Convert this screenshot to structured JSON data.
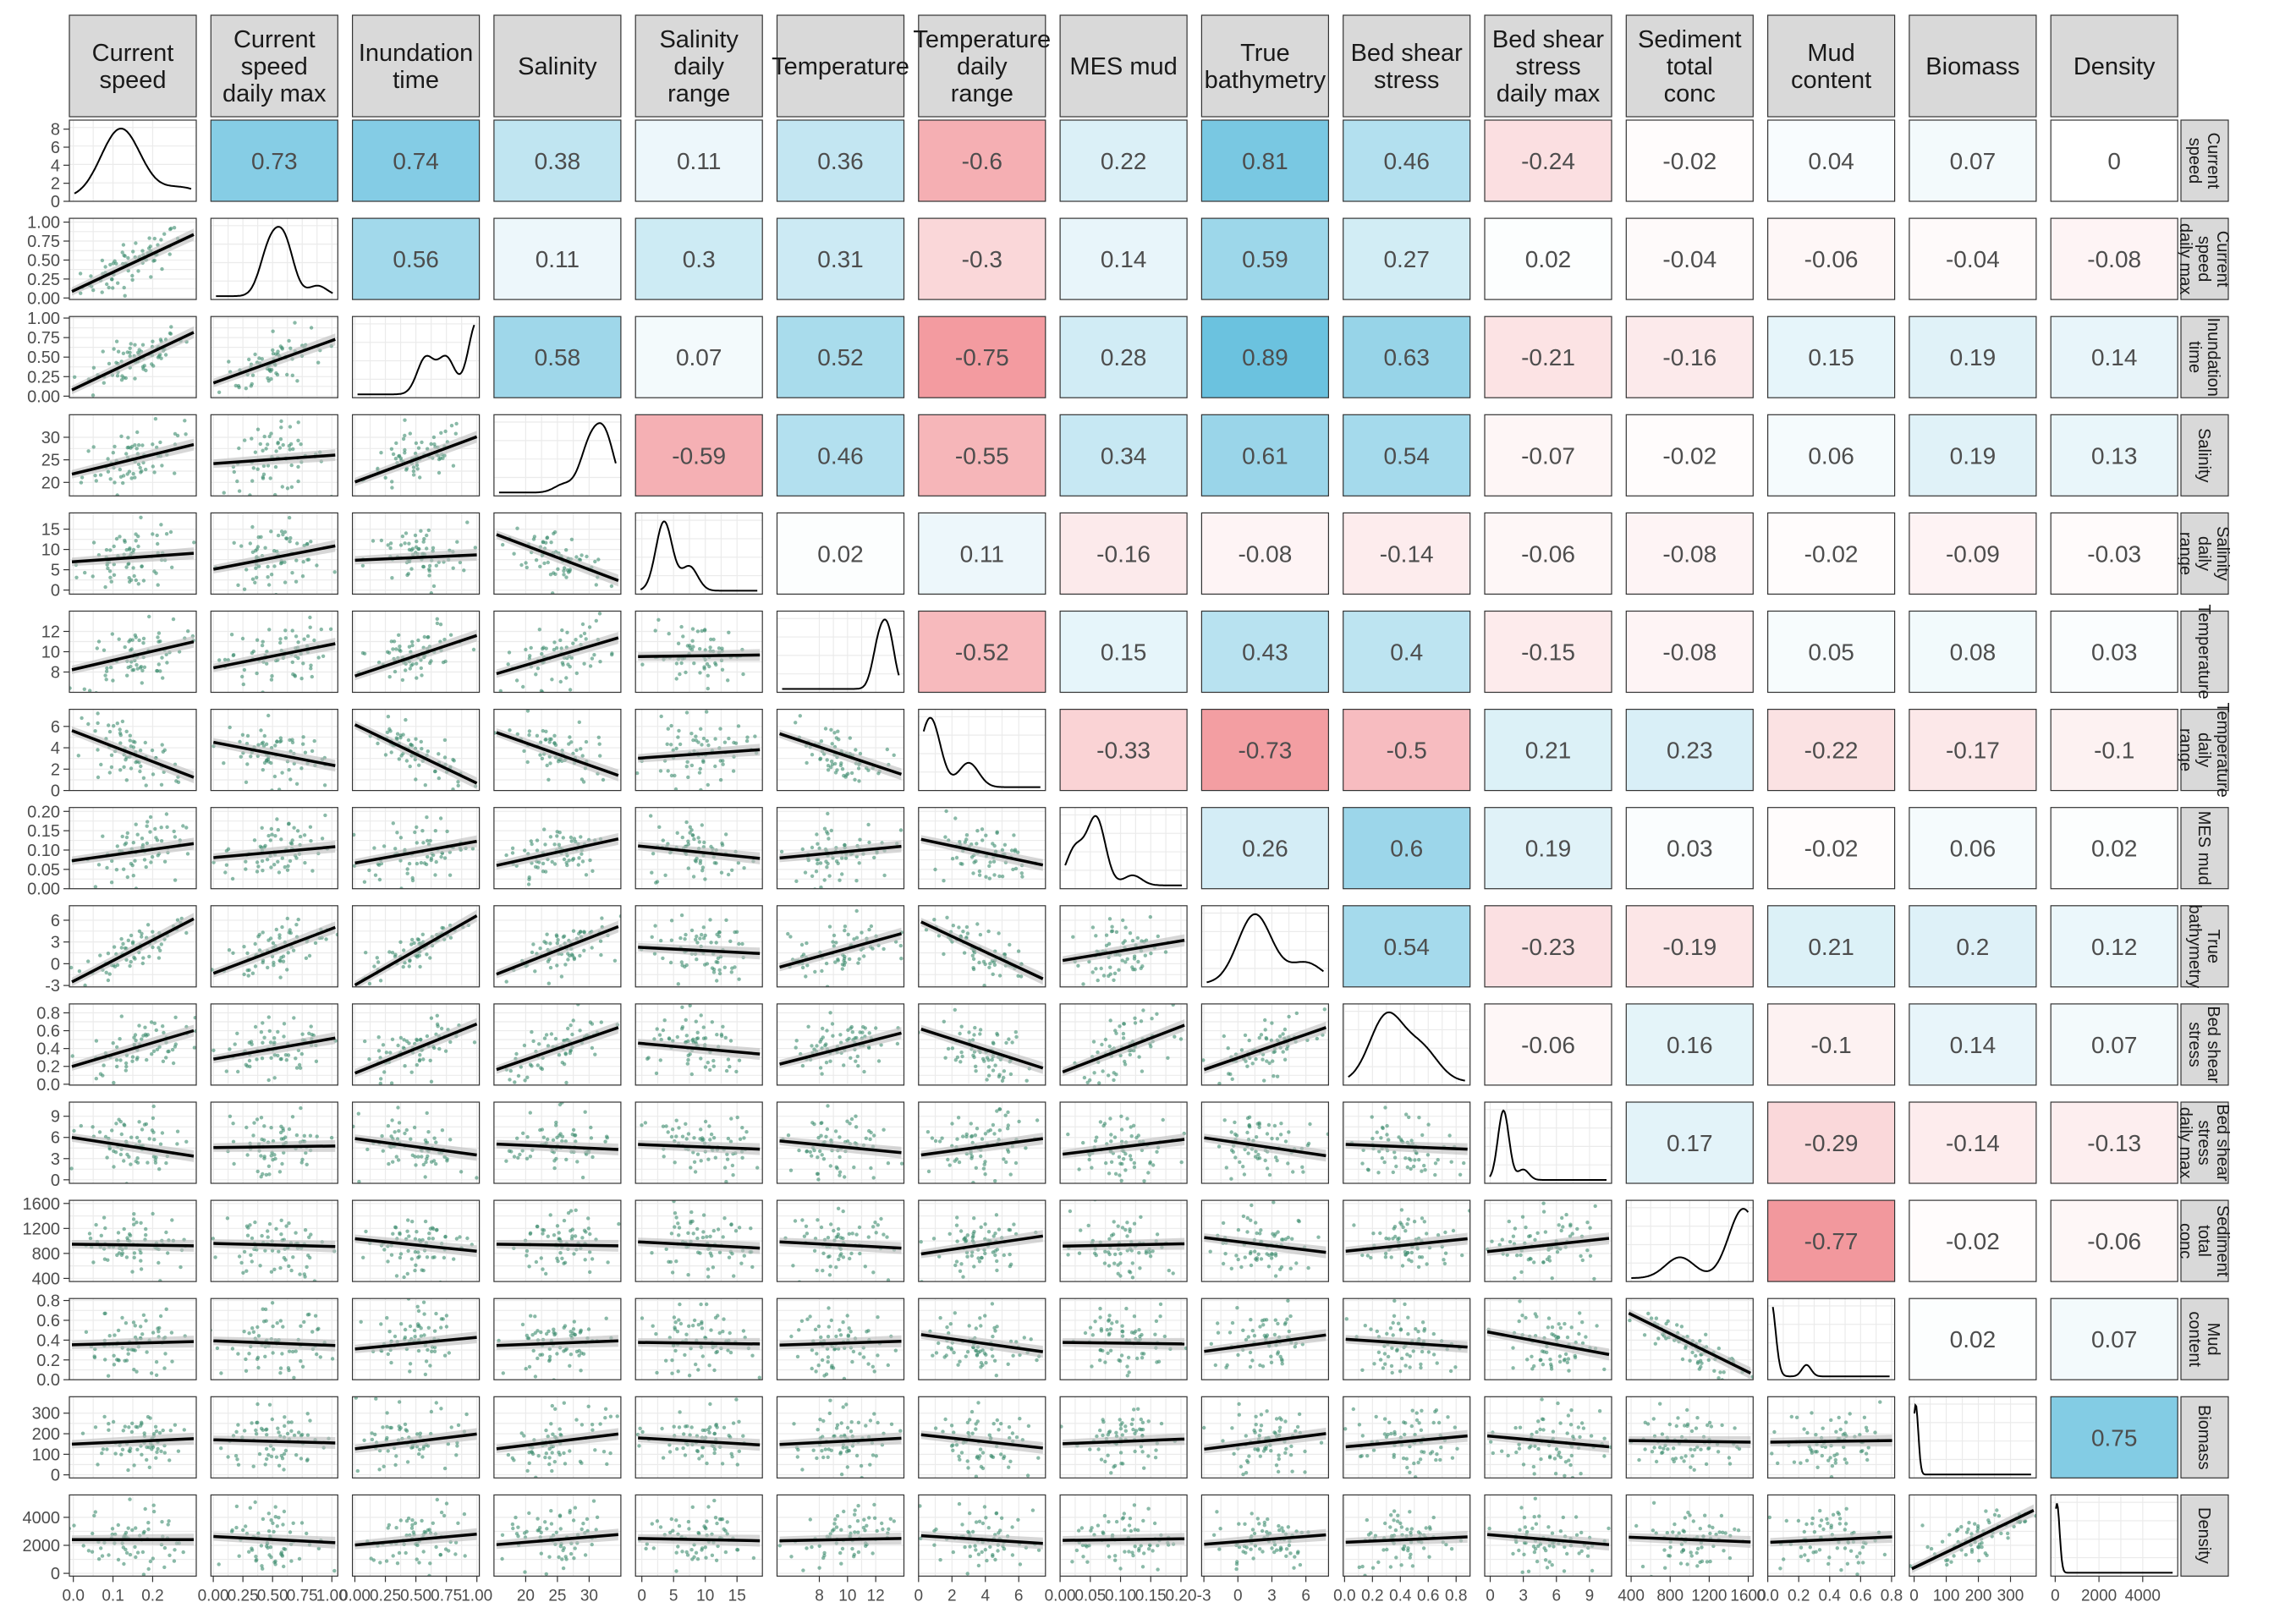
{
  "chart_data": {
    "type": "scatter-matrix",
    "variables": [
      {
        "header": [
          "Current",
          "speed"
        ],
        "strip": [
          "Current",
          "speed"
        ],
        "range": [
          -0.01,
          0.31
        ],
        "ticks": [
          0,
          0.1,
          0.2
        ],
        "tick_labels": [
          "0.0",
          "0.1",
          "0.2"
        ],
        "y_ticks": [
          0,
          2,
          4,
          6,
          8
        ],
        "y_tick_labels": [
          "0",
          "2",
          "4",
          "6",
          "8"
        ],
        "y_range": [
          0,
          9
        ],
        "density_peaks": [
          [
            0.12,
            1
          ],
          [
            0.27,
            0.15
          ]
        ],
        "dens_width": 0.05
      },
      {
        "header": [
          "Current",
          "speed",
          "daily max"
        ],
        "strip": [
          "Current",
          "speed",
          "daily max"
        ],
        "range": [
          -0.02,
          1.05
        ],
        "ticks": [
          0,
          0.25,
          0.5,
          0.75,
          1
        ],
        "tick_labels": [
          "0.00",
          "0.25",
          "0.50",
          "0.75",
          "1.00"
        ],
        "y_ticks": [
          0,
          0.25,
          0.5,
          0.75,
          1
        ],
        "y_tick_labels": [
          "0.00",
          "0.25",
          "0.50",
          "0.75",
          "1.00"
        ],
        "density_peaks": [
          [
            0.47,
            0.85
          ],
          [
            0.6,
            1
          ],
          [
            0.88,
            0.2
          ]
        ],
        "dens_width": 0.08
      },
      {
        "header": [
          "Inundation",
          "time"
        ],
        "strip": [
          "Inundation",
          "time"
        ],
        "range": [
          -0.02,
          1.02
        ],
        "ticks": [
          0,
          0.25,
          0.5,
          0.75,
          1
        ],
        "tick_labels": [
          "0.00",
          "0.25",
          "0.50",
          "0.75",
          "1.00"
        ],
        "y_ticks": [
          0,
          0.25,
          0.5,
          0.75,
          1
        ],
        "y_tick_labels": [
          "0.00",
          "0.25",
          "0.50",
          "0.75",
          "1.00"
        ],
        "density_peaks": [
          [
            0.58,
            0.5
          ],
          [
            0.75,
            0.5
          ],
          [
            1.0,
            1
          ]
        ],
        "dens_width": 0.07
      },
      {
        "header": [
          "Salinity"
        ],
        "strip": [
          "Salinity"
        ],
        "range": [
          15,
          35
        ],
        "ticks": [
          20,
          25,
          30
        ],
        "tick_labels": [
          "20",
          "25",
          "30"
        ],
        "y_ticks": [
          20,
          25,
          30
        ],
        "y_tick_labels": [
          "20",
          "25",
          "30"
        ],
        "y_range": [
          17,
          35
        ],
        "density_peaks": [
          [
            30,
            0.8
          ],
          [
            32.5,
            1
          ],
          [
            26,
            0.15
          ]
        ],
        "dens_width": 1.5
      },
      {
        "header": [
          "Salinity",
          "daily",
          "range"
        ],
        "strip": [
          "Salinity",
          "daily",
          "range"
        ],
        "range": [
          -1,
          19
        ],
        "ticks": [
          0,
          5,
          10,
          15
        ],
        "tick_labels": [
          "0",
          "5",
          "10",
          "15"
        ],
        "y_ticks": [
          0,
          5,
          10,
          15
        ],
        "y_tick_labels": [
          "0",
          "5",
          "10",
          "15"
        ],
        "density_peaks": [
          [
            3.5,
            1
          ],
          [
            7.5,
            0.35
          ]
        ],
        "dens_width": 1.3
      },
      {
        "header": [
          "Temperature"
        ],
        "strip": [
          "Temperature"
        ],
        "range": [
          5,
          14
        ],
        "ticks": [
          8,
          10,
          12
        ],
        "tick_labels": [
          "8",
          "10",
          "12"
        ],
        "y_ticks": [
          8,
          10,
          12
        ],
        "y_tick_labels": [
          "8",
          "10",
          "12"
        ],
        "y_range": [
          6,
          14
        ],
        "density_peaks": [
          [
            12.2,
            0.8
          ],
          [
            12.9,
            1
          ]
        ],
        "dens_width": 0.45
      },
      {
        "header": [
          "Temperature",
          "daily",
          "range"
        ],
        "strip": [
          "Temperature",
          "daily",
          "range"
        ],
        "range": [
          0,
          7.6
        ],
        "ticks": [
          0,
          2,
          4,
          6
        ],
        "tick_labels": [
          "0",
          "2",
          "4",
          "6"
        ],
        "y_ticks": [
          0,
          2,
          4,
          6
        ],
        "y_tick_labels": [
          "0",
          "2",
          "4",
          "6"
        ],
        "density_peaks": [
          [
            0.7,
            1
          ],
          [
            3,
            0.35
          ]
        ],
        "dens_width": 0.6
      },
      {
        "header": [
          "MES mud"
        ],
        "strip": [
          "MES mud"
        ],
        "range": [
          0,
          0.21
        ],
        "ticks": [
          0,
          0.05,
          0.1,
          0.15,
          0.2
        ],
        "tick_labels": [
          "0.00",
          "0.05",
          "0.10",
          "0.15",
          "0.20"
        ],
        "y_ticks": [
          0,
          0.05,
          0.1,
          0.15,
          0.2
        ],
        "y_tick_labels": [
          "0.00",
          "0.05",
          "0.10",
          "0.15",
          "0.20"
        ],
        "density_peaks": [
          [
            0.025,
            0.55
          ],
          [
            0.06,
            1
          ],
          [
            0.12,
            0.15
          ]
        ],
        "dens_width": 0.015
      },
      {
        "header": [
          "True",
          "bathymetry"
        ],
        "strip": [
          "True",
          "bathymetry"
        ],
        "range": [
          -3.2,
          8
        ],
        "ticks": [
          -3,
          0,
          3,
          6
        ],
        "tick_labels": [
          "-3",
          "0",
          "3",
          "6"
        ],
        "y_ticks": [
          -3,
          0,
          3,
          6
        ],
        "y_tick_labels": [
          "-3",
          "0",
          "3",
          "6"
        ],
        "density_peaks": [
          [
            1.5,
            1
          ],
          [
            6,
            0.3
          ]
        ],
        "dens_width": 1.5
      },
      {
        "header": [
          "Bed shear",
          "stress"
        ],
        "strip": [
          "Bed shear",
          "stress"
        ],
        "range": [
          -0.01,
          0.9
        ],
        "ticks": [
          0,
          0.2,
          0.4,
          0.6,
          0.8
        ],
        "tick_labels": [
          "0.0",
          "0.2",
          "0.4",
          "0.6",
          "0.8"
        ],
        "y_ticks": [
          0,
          0.2,
          0.4,
          0.6,
          0.8
        ],
        "y_tick_labels": [
          "0.0",
          "0.2",
          "0.4",
          "0.6",
          "0.8"
        ],
        "density_peaks": [
          [
            0.3,
            1
          ],
          [
            0.55,
            0.5
          ]
        ],
        "dens_width": 0.12
      },
      {
        "header": [
          "Bed shear",
          "stress",
          "daily max"
        ],
        "strip": [
          "Bed shear",
          "stress",
          "daily max"
        ],
        "range": [
          -0.5,
          11
        ],
        "ticks": [
          0,
          3,
          6,
          9
        ],
        "tick_labels": [
          "0",
          "3",
          "6",
          "9"
        ],
        "y_ticks": [
          0,
          3,
          6,
          9
        ],
        "y_tick_labels": [
          "0",
          "3",
          "6",
          "9"
        ],
        "density_peaks": [
          [
            1.2,
            1
          ],
          [
            3,
            0.15
          ]
        ],
        "dens_width": 0.5
      },
      {
        "header": [
          "Sediment",
          "total",
          "conc"
        ],
        "strip": [
          "Sediment",
          "total",
          "conc"
        ],
        "range": [
          350,
          1650
        ],
        "ticks": [
          400,
          800,
          1200,
          1600
        ],
        "tick_labels": [
          "400",
          "800",
          "1200",
          "1600"
        ],
        "y_ticks": [
          400,
          800,
          1200,
          1600
        ],
        "y_tick_labels": [
          "400",
          "800",
          "1200",
          "1600"
        ],
        "density_peaks": [
          [
            900,
            0.3
          ],
          [
            1550,
            1
          ]
        ],
        "dens_width": 150
      },
      {
        "header": [
          "Mud",
          "content"
        ],
        "strip": [
          "Mud",
          "content"
        ],
        "range": [
          0,
          0.82
        ],
        "ticks": [
          0,
          0.2,
          0.4,
          0.6,
          0.8
        ],
        "tick_labels": [
          "0.0",
          "0.2",
          "0.4",
          "0.6",
          "0.8"
        ],
        "y_ticks": [
          0,
          0.2,
          0.4,
          0.6,
          0.8
        ],
        "y_tick_labels": [
          "0.0",
          "0.2",
          "0.4",
          "0.6",
          "0.8"
        ],
        "density_peaks": [
          [
            0.02,
            1
          ],
          [
            0.25,
            0.15
          ]
        ],
        "dens_width": 0.03
      },
      {
        "header": [
          "Biomass"
        ],
        "strip": [
          "Biomass"
        ],
        "range": [
          -15,
          380
        ],
        "ticks": [
          0,
          100,
          200,
          300
        ],
        "tick_labels": [
          "0",
          "100",
          "200",
          "300"
        ],
        "y_ticks": [
          0,
          100,
          200,
          300
        ],
        "y_tick_labels": [
          "0",
          "100",
          "200",
          "300"
        ],
        "density_peaks": [
          [
            5,
            1
          ]
        ],
        "dens_width": 8
      },
      {
        "header": [
          "Density"
        ],
        "strip": [
          "Density"
        ],
        "range": [
          -200,
          5600
        ],
        "ticks": [
          0,
          2000,
          4000
        ],
        "tick_labels": [
          "0",
          "2000",
          "4000"
        ],
        "y_ticks": [
          0,
          2000,
          4000
        ],
        "y_tick_labels": [
          "0",
          "2000",
          "4000"
        ],
        "density_peaks": [
          [
            80,
            1
          ]
        ],
        "dens_width": 120
      }
    ],
    "correlations": [
      [
        0.73,
        0.74,
        0.38,
        0.11,
        0.36,
        -0.6,
        0.22,
        0.81,
        0.46,
        -0.24,
        -0.02,
        0.04,
        0.07,
        0
      ],
      [
        0.56,
        0.11,
        0.3,
        0.31,
        -0.3,
        0.14,
        0.59,
        0.27,
        0.02,
        -0.04,
        -0.06,
        -0.04,
        -0.08
      ],
      [
        0.58,
        0.07,
        0.52,
        -0.75,
        0.28,
        0.89,
        0.63,
        -0.21,
        -0.16,
        0.15,
        0.19,
        0.14
      ],
      [
        -0.59,
        0.46,
        -0.55,
        0.34,
        0.61,
        0.54,
        -0.07,
        -0.02,
        0.06,
        0.19,
        0.13
      ],
      [
        0.02,
        0.11,
        -0.16,
        -0.08,
        -0.14,
        -0.06,
        -0.08,
        -0.02,
        -0.09,
        -0.03
      ],
      [
        -0.52,
        0.15,
        0.43,
        0.4,
        -0.15,
        -0.08,
        0.05,
        0.08,
        0.03
      ],
      [
        -0.33,
        -0.73,
        -0.5,
        0.21,
        0.23,
        -0.22,
        -0.17,
        -0.1
      ],
      [
        0.26,
        0.6,
        0.19,
        0.03,
        -0.02,
        0.06,
        0.02
      ],
      [
        0.54,
        -0.23,
        -0.19,
        0.21,
        0.2,
        0.12
      ],
      [
        -0.06,
        0.16,
        -0.1,
        0.14,
        0.07
      ],
      [
        0.17,
        -0.29,
        -0.14,
        -0.13
      ],
      [
        -0.77,
        -0.02,
        -0.06
      ],
      [
        0.02,
        0.07
      ],
      [
        0.75
      ]
    ],
    "colors": {
      "positive": "#0096c8",
      "negative": "#e6323c",
      "points": "#3c8c6e",
      "strip": "#d9d9d9",
      "fit": "#000000",
      "band": "#bdbdbd",
      "grid": "#ebebeb",
      "text": "#4d4d4d"
    }
  }
}
